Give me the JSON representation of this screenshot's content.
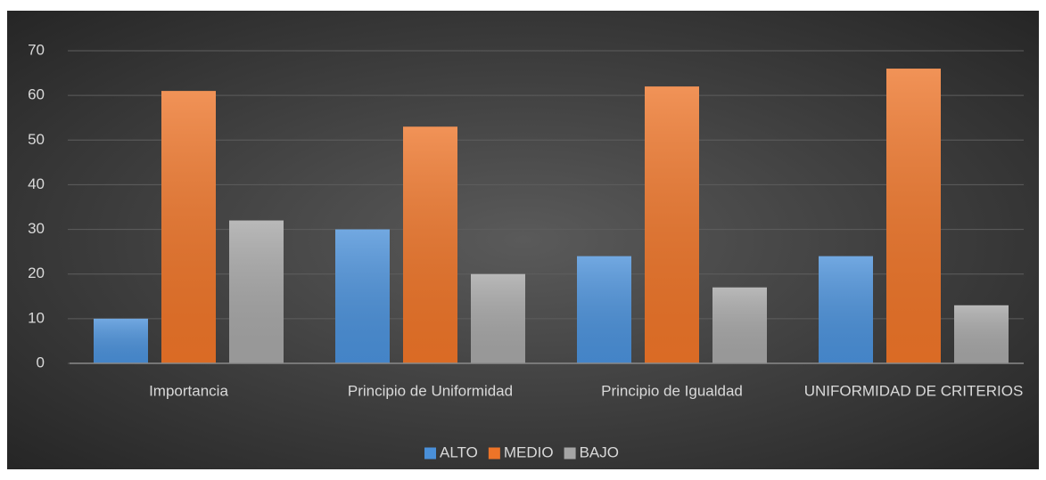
{
  "chart_data": {
    "type": "bar",
    "categories": [
      "Importancia",
      "Principio de Uniformidad",
      "Principio de Igualdad",
      "UNIFORMIDAD DE CRITERIOS"
    ],
    "series": [
      {
        "name": "ALTO",
        "color": "#4a90d9",
        "values": [
          10,
          30,
          24,
          24
        ]
      },
      {
        "name": "MEDIO",
        "color": "#ed7428",
        "values": [
          61,
          53,
          62,
          66
        ]
      },
      {
        "name": "BAJO",
        "color": "#a5a5a5",
        "values": [
          32,
          20,
          17,
          13
        ]
      }
    ],
    "ylim": [
      0,
      70
    ],
    "yticks": [
      0,
      10,
      20,
      30,
      40,
      50,
      60,
      70
    ],
    "grid": true,
    "legend": "bottom"
  }
}
